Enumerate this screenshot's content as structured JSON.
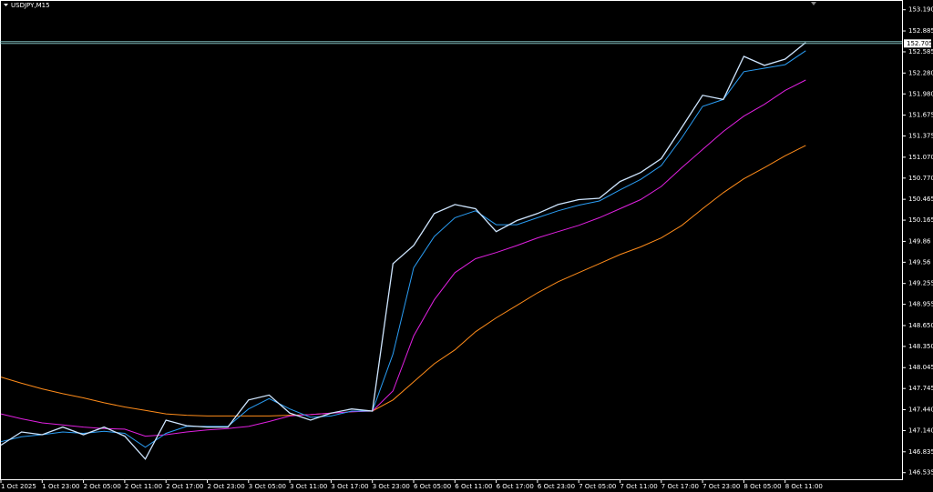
{
  "chart_data": {
    "type": "line",
    "title": "USDJPY,M15",
    "categories": [
      "1 Oct 2025",
      null,
      "1 Oct 23:00",
      null,
      "2 Oct 05:00",
      null,
      "2 Oct 11:00",
      null,
      "2 Oct 17:00",
      null,
      "2 Oct 23:00",
      null,
      "3 Oct 05:00",
      null,
      "3 Oct 11:00",
      null,
      "3 Oct 17:00",
      null,
      "3 Oct 23:00",
      null,
      "6 Oct 05:00",
      null,
      "6 Oct 11:00",
      null,
      "6 Oct 17:00",
      null,
      "6 Oct 23:00",
      null,
      "7 Oct 05:00",
      null,
      "7 Oct 11:00",
      null,
      "7 Oct 17:00",
      null,
      "7 Oct 23:00",
      null,
      "8 Oct 05:00",
      null,
      "8 Oct 11:00",
      null
    ],
    "series": [
      {
        "color": "#ff8c1a",
        "values": [
          147.91,
          147.82,
          147.74,
          147.67,
          147.61,
          147.54,
          147.48,
          147.43,
          147.38,
          147.36,
          147.35,
          147.35,
          147.35,
          147.35,
          147.36,
          147.37,
          147.39,
          147.41,
          147.42,
          147.58,
          147.84,
          148.1,
          148.3,
          148.56,
          148.76,
          148.94,
          149.12,
          149.28,
          149.41,
          149.54,
          149.67,
          149.78,
          149.91,
          150.09,
          150.33,
          150.56,
          150.76,
          150.92,
          151.09,
          151.24
        ]
      },
      {
        "color": "#e020e0",
        "values": [
          147.38,
          147.31,
          147.25,
          147.22,
          147.19,
          147.17,
          147.16,
          147.06,
          147.08,
          147.12,
          147.15,
          147.17,
          147.2,
          147.27,
          147.35,
          147.37,
          147.39,
          147.41,
          147.42,
          147.71,
          148.5,
          149.02,
          149.41,
          149.61,
          149.7,
          149.8,
          149.91,
          150.0,
          150.09,
          150.2,
          150.33,
          150.46,
          150.65,
          150.92,
          151.18,
          151.44,
          151.66,
          151.83,
          152.03,
          152.18
        ]
      },
      {
        "color": "#2a9df4",
        "values": [
          146.98,
          147.05,
          147.08,
          147.12,
          147.1,
          147.13,
          147.1,
          146.9,
          147.1,
          147.2,
          147.2,
          147.2,
          147.45,
          147.6,
          147.45,
          147.33,
          147.35,
          147.42,
          147.42,
          148.24,
          149.48,
          149.93,
          150.2,
          150.3,
          150.1,
          150.1,
          150.2,
          150.3,
          150.38,
          150.44,
          150.6,
          150.75,
          150.95,
          151.35,
          151.8,
          151.9,
          152.3,
          152.35,
          152.4,
          152.6
        ]
      },
      {
        "color": "#cfe6ff",
        "values": [
          146.93,
          147.12,
          147.08,
          147.19,
          147.08,
          147.19,
          147.06,
          146.73,
          147.29,
          147.21,
          147.19,
          147.19,
          147.58,
          147.65,
          147.39,
          147.29,
          147.39,
          147.45,
          147.42,
          149.54,
          149.8,
          150.26,
          150.39,
          150.33,
          150.0,
          150.16,
          150.26,
          150.39,
          150.46,
          150.48,
          150.72,
          150.85,
          151.05,
          151.5,
          151.96,
          151.9,
          152.52,
          152.39,
          152.48,
          152.72
        ]
      }
    ],
    "current_price": 152.705,
    "current_price_color": "#8fd3d3",
    "ylim": [
      146.44,
      153.33
    ],
    "yticks": [
      {
        "value": 153.19,
        "label": "153.190"
      },
      152.885,
      152.585,
      {
        "value": 152.28,
        "label": "152.280"
      },
      {
        "value": 151.98,
        "label": "151.980"
      },
      151.675,
      151.375,
      {
        "value": 151.07,
        "label": "151.070"
      },
      {
        "value": 150.77,
        "label": "150.770"
      },
      150.465,
      150.165,
      149.86,
      149.56,
      149.255,
      148.955,
      {
        "value": 148.65,
        "label": "148.650"
      },
      {
        "value": 148.35,
        "label": "148.350"
      },
      148.045,
      147.745,
      {
        "value": 147.44,
        "label": "147.440"
      },
      {
        "value": 147.14,
        "label": "147.140"
      },
      146.835,
      146.535
    ]
  }
}
